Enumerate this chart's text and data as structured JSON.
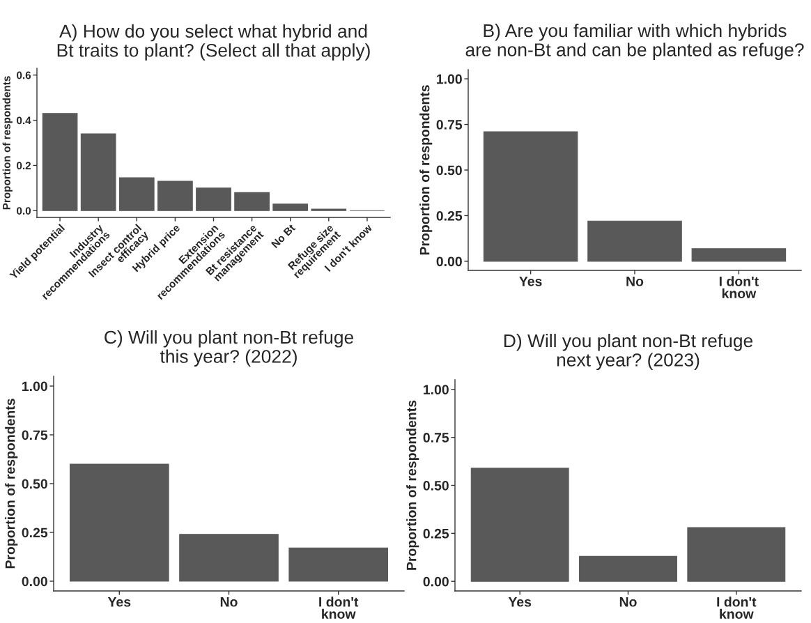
{
  "chart_data": [
    {
      "type": "bar",
      "title": "A) How do you select what hybrid and\nBt traits to plant? (Select all that apply)",
      "ylabel": "Proportion of respondents",
      "categories": [
        "Yield potential",
        "Industry\nrecommendations",
        "Insect control\nefficacy",
        "Hybrid price",
        "Extension\nrecommendations",
        "Bt resistance\nmanagement",
        "No Bt",
        "Refuge size\nrequirement",
        "I don't know"
      ],
      "values": [
        0.43,
        0.34,
        0.146,
        0.13,
        0.1,
        0.08,
        0.029,
        0.007,
        0
      ],
      "color": "#595959",
      "ylim": [
        -0.03,
        0.63
      ],
      "yticks": [
        {
          "value": 0,
          "label": "0.0"
        },
        {
          "value": 0.2,
          "label": "0.2"
        },
        {
          "value": 0.4,
          "label": "0.4"
        },
        {
          "value": 0.6,
          "label": "0.6"
        }
      ],
      "grid": false
    },
    {
      "type": "bar",
      "title": "B) Are you familiar with which hybrids\nare non-Bt and can be planted as refuge?",
      "ylabel": "Proportion of respondents",
      "categories": [
        "Yes",
        "No",
        "I don't\nknow"
      ],
      "values": [
        0.71,
        0.22,
        0.069
      ],
      "color": "#595959",
      "ylim": [
        -0.05,
        1.05
      ],
      "yticks": [
        {
          "value": 0,
          "label": "0.00"
        },
        {
          "value": 0.25,
          "label": "0.25"
        },
        {
          "value": 0.5,
          "label": "0.50"
        },
        {
          "value": 0.75,
          "label": "0.75"
        },
        {
          "value": 1,
          "label": "1.00"
        }
      ],
      "grid": false
    },
    {
      "type": "bar",
      "title": "C) Will you plant non-Bt refuge\nthis year? (2022)",
      "ylabel": "Proportion of respondents",
      "categories": [
        "Yes",
        "No",
        "I don't\nknow"
      ],
      "values": [
        0.6,
        0.24,
        0.17
      ],
      "color": "#595959",
      "ylim": [
        -0.05,
        1.05
      ],
      "yticks": [
        {
          "value": 0,
          "label": "0.00"
        },
        {
          "value": 0.25,
          "label": "0.25"
        },
        {
          "value": 0.5,
          "label": "0.50"
        },
        {
          "value": 0.75,
          "label": "0.75"
        },
        {
          "value": 1,
          "label": "1.00"
        }
      ],
      "grid": false
    },
    {
      "type": "bar",
      "title": "D) Will you plant non-Bt refuge\nnext year? (2023)",
      "ylabel": "Proportion of respondents",
      "categories": [
        "Yes",
        "No",
        "I don't\nknow"
      ],
      "values": [
        0.59,
        0.13,
        0.28
      ],
      "color": "#595959",
      "ylim": [
        -0.05,
        1.05
      ],
      "yticks": [
        {
          "value": 0,
          "label": "0.00"
        },
        {
          "value": 0.25,
          "label": "0.25"
        },
        {
          "value": 0.5,
          "label": "0.50"
        },
        {
          "value": 0.75,
          "label": "0.75"
        },
        {
          "value": 1,
          "label": "1.00"
        }
      ],
      "grid": false
    }
  ]
}
